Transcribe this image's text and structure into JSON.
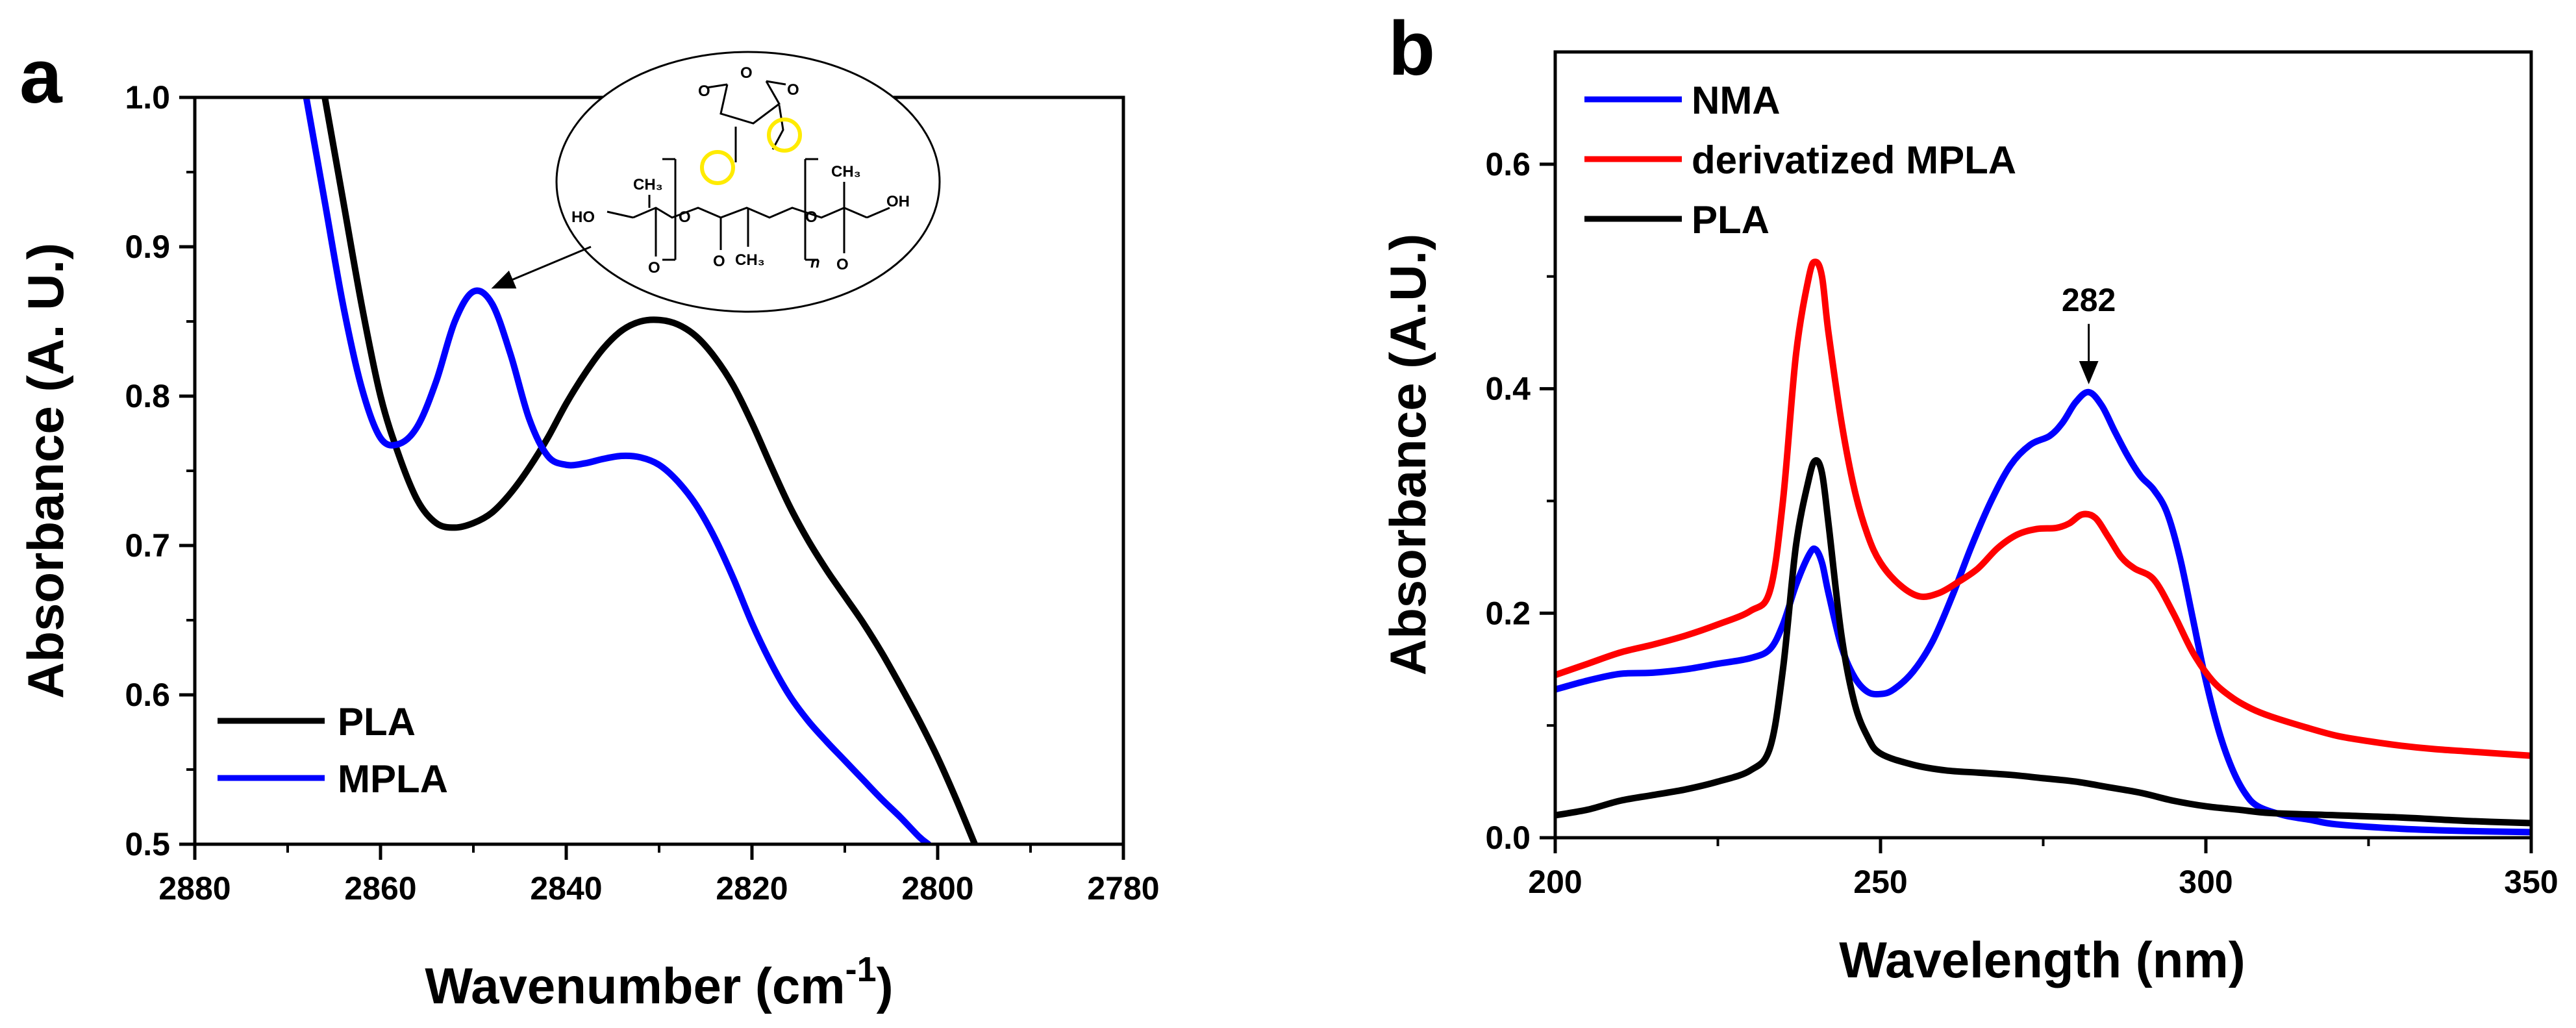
{
  "chart_data": [
    {
      "panel": "a",
      "type": "line",
      "title": "",
      "xlabel": "Wavenumber (cm",
      "xlabel_sup": "-1",
      "xlabel_tail": ")",
      "ylabel": "Absorbance (A. U.)",
      "xlim": [
        2880,
        2780
      ],
      "ylim": [
        0.5,
        1.0
      ],
      "x_ticks": [
        2880,
        2860,
        2840,
        2820,
        2800,
        2780
      ],
      "x_tick_labels": [
        "2880",
        "2860",
        "2840",
        "2820",
        "2800",
        "2780"
      ],
      "y_ticks": [
        0.5,
        0.6,
        0.7,
        0.8,
        0.9,
        1.0
      ],
      "y_tick_labels": [
        "0.5",
        "0.6",
        "0.7",
        "0.8",
        "0.9",
        "1.0"
      ],
      "legend_position": "bottom-left",
      "series": [
        {
          "name": "PLA",
          "color": "#000000",
          "x": [
            2866,
            2864,
            2862,
            2860,
            2858,
            2856,
            2854,
            2852,
            2850,
            2848,
            2846,
            2844,
            2842,
            2840,
            2838,
            2836,
            2834,
            2832,
            2830,
            2828,
            2826,
            2824,
            2822,
            2820,
            2818,
            2816,
            2814,
            2812,
            2810,
            2808,
            2806,
            2804,
            2802,
            2800,
            2798,
            2796
          ],
          "y": [
            1.0,
            0.93,
            0.86,
            0.8,
            0.76,
            0.73,
            0.715,
            0.712,
            0.715,
            0.722,
            0.735,
            0.752,
            0.772,
            0.795,
            0.815,
            0.832,
            0.844,
            0.85,
            0.851,
            0.848,
            0.84,
            0.826,
            0.807,
            0.782,
            0.754,
            0.727,
            0.704,
            0.684,
            0.666,
            0.648,
            0.628,
            0.606,
            0.583,
            0.558,
            0.53,
            0.5
          ]
        },
        {
          "name": "MPLA",
          "color": "#0000ff",
          "x": [
            2868,
            2866,
            2864,
            2862,
            2860,
            2858,
            2856,
            2854,
            2852,
            2850,
            2848,
            2846,
            2844,
            2842,
            2840,
            2838,
            2836,
            2834,
            2832,
            2830,
            2828,
            2826,
            2824,
            2822,
            2820,
            2818,
            2816,
            2814,
            2812,
            2810,
            2808,
            2806,
            2804,
            2802,
            2801
          ],
          "y": [
            1.0,
            0.93,
            0.86,
            0.805,
            0.772,
            0.768,
            0.78,
            0.81,
            0.85,
            0.87,
            0.862,
            0.828,
            0.785,
            0.76,
            0.754,
            0.755,
            0.758,
            0.76,
            0.759,
            0.754,
            0.743,
            0.727,
            0.705,
            0.678,
            0.648,
            0.622,
            0.6,
            0.583,
            0.569,
            0.556,
            0.543,
            0.53,
            0.518,
            0.505,
            0.5
          ]
        }
      ],
      "annotations": [
        {
          "type": "arrow",
          "from": "structure-inset",
          "to_point": {
            "x": 2849,
            "y": 0.87
          }
        }
      ],
      "structure_labels": [
        "O",
        "O",
        "O",
        "CH₃",
        "CH₃",
        "HO",
        "O",
        "O",
        "O",
        "O",
        "OH",
        "O",
        "CH₃",
        "n"
      ]
    },
    {
      "panel": "b",
      "type": "line",
      "title": "",
      "xlabel": "Wavelength (nm)",
      "ylabel": "Absorbance (A.U.)",
      "xlim": [
        200,
        350
      ],
      "ylim": [
        0.0,
        0.7
      ],
      "x_ticks": [
        200,
        250,
        300,
        350
      ],
      "x_tick_labels": [
        "200",
        "250",
        "300",
        "350"
      ],
      "y_ticks": [
        0.0,
        0.2,
        0.4,
        0.6
      ],
      "y_tick_labels": [
        "0.0",
        "0.2",
        "0.4",
        "0.6"
      ],
      "legend_position": "top-left",
      "series": [
        {
          "name": "NMA",
          "color": "#0000ff",
          "x": [
            200,
            205,
            210,
            215,
            220,
            225,
            230,
            233,
            235,
            237,
            239,
            240,
            241,
            242,
            244,
            246,
            248,
            250,
            252,
            255,
            258,
            261,
            264,
            267,
            270,
            273,
            276,
            278,
            280,
            282,
            284,
            286,
            288,
            290,
            292,
            294,
            296,
            298,
            300,
            302,
            304,
            306,
            308,
            312,
            316,
            320,
            330,
            340,
            350
          ],
          "y": [
            0.132,
            0.14,
            0.146,
            0.147,
            0.15,
            0.155,
            0.16,
            0.168,
            0.19,
            0.225,
            0.252,
            0.257,
            0.245,
            0.218,
            0.17,
            0.143,
            0.13,
            0.128,
            0.132,
            0.148,
            0.175,
            0.215,
            0.26,
            0.3,
            0.332,
            0.35,
            0.358,
            0.37,
            0.388,
            0.397,
            0.385,
            0.362,
            0.34,
            0.322,
            0.31,
            0.29,
            0.25,
            0.195,
            0.14,
            0.095,
            0.062,
            0.04,
            0.028,
            0.02,
            0.016,
            0.012,
            0.008,
            0.006,
            0.005
          ]
        },
        {
          "name": "derivatized MPLA",
          "color": "#ff0000",
          "x": [
            200,
            205,
            210,
            215,
            220,
            225,
            230,
            233,
            235,
            237,
            239,
            240,
            241,
            242,
            244,
            246,
            248,
            250,
            253,
            256,
            259,
            262,
            265,
            268,
            271,
            274,
            277,
            279,
            281,
            283,
            285,
            287,
            289,
            292,
            295,
            298,
            301,
            304,
            307,
            310,
            315,
            320,
            325,
            330,
            335,
            340,
            345,
            350
          ],
          "y": [
            0.145,
            0.155,
            0.165,
            0.172,
            0.18,
            0.19,
            0.202,
            0.22,
            0.3,
            0.43,
            0.5,
            0.513,
            0.5,
            0.45,
            0.37,
            0.31,
            0.27,
            0.245,
            0.225,
            0.215,
            0.218,
            0.228,
            0.24,
            0.258,
            0.27,
            0.275,
            0.276,
            0.28,
            0.288,
            0.285,
            0.268,
            0.25,
            0.24,
            0.23,
            0.2,
            0.165,
            0.14,
            0.125,
            0.115,
            0.108,
            0.099,
            0.091,
            0.086,
            0.082,
            0.079,
            0.077,
            0.075,
            0.073
          ]
        },
        {
          "name": "PLA",
          "color": "#000000",
          "x": [
            200,
            205,
            210,
            215,
            220,
            225,
            230,
            233,
            235,
            237,
            239,
            240,
            241,
            242,
            244,
            246,
            248,
            250,
            255,
            260,
            265,
            270,
            275,
            280,
            285,
            290,
            295,
            300,
            305,
            310,
            320,
            330,
            340,
            350
          ],
          "y": [
            0.02,
            0.025,
            0.033,
            0.038,
            0.043,
            0.05,
            0.06,
            0.08,
            0.15,
            0.26,
            0.32,
            0.336,
            0.325,
            0.28,
            0.18,
            0.12,
            0.09,
            0.075,
            0.065,
            0.06,
            0.058,
            0.056,
            0.053,
            0.05,
            0.045,
            0.04,
            0.033,
            0.028,
            0.025,
            0.022,
            0.02,
            0.018,
            0.015,
            0.013
          ]
        }
      ],
      "annotations": [
        {
          "type": "arrow",
          "text": "282",
          "x": 282,
          "y": 0.397
        }
      ]
    }
  ]
}
